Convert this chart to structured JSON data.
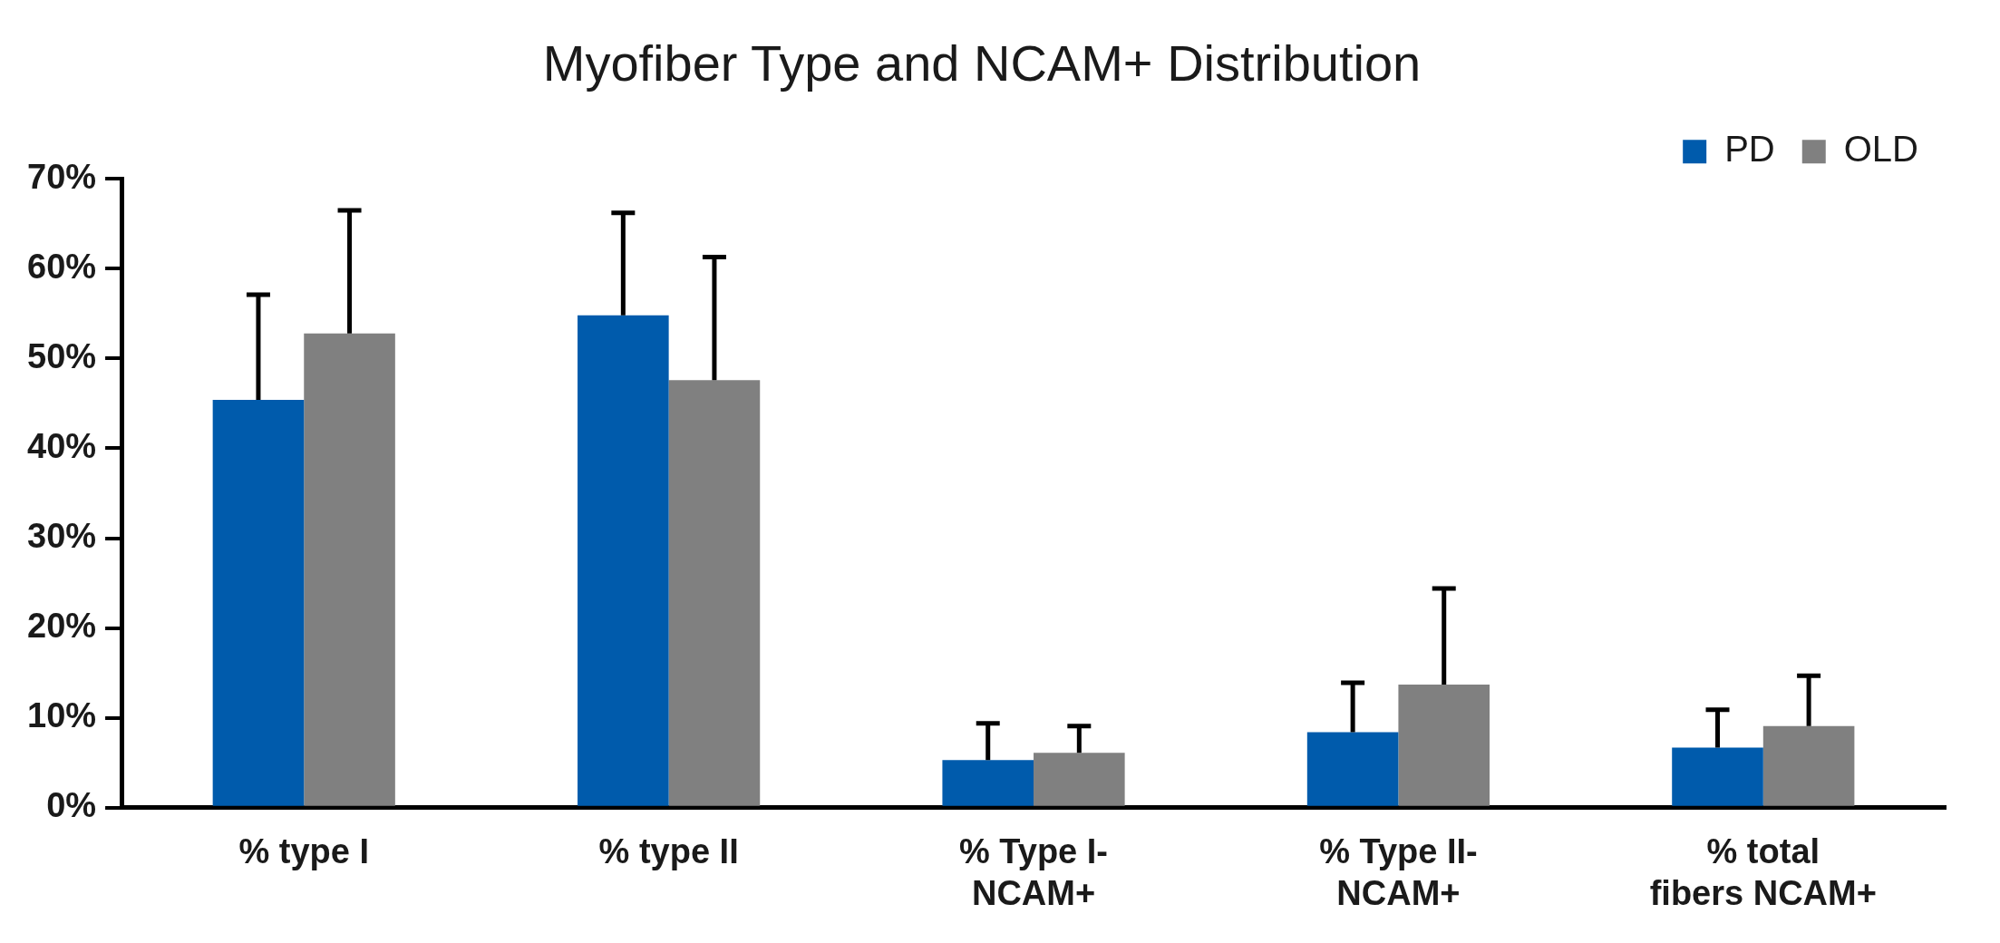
{
  "chart_data": {
    "type": "bar",
    "title": "Myofiber Type and NCAM+ Distribution",
    "categories": [
      "% type I",
      "% type II",
      "% Type I-NCAM+",
      "% Type II-NCAM+",
      "% total fibers NCAM+"
    ],
    "series": [
      {
        "name": "PD",
        "color": "#005bac",
        "values": [
          45.4,
          54.8,
          5.3,
          8.4,
          6.7
        ],
        "errors": [
          [
            45.4,
            57.1
          ],
          [
            54.8,
            66.2
          ],
          [
            5.3,
            9.4
          ],
          [
            8.4,
            13.9
          ],
          [
            6.7,
            10.9
          ]
        ]
      },
      {
        "name": "OLD",
        "color": "#808080",
        "values": [
          52.8,
          47.6,
          6.1,
          13.7,
          9.1
        ],
        "errors": [
          [
            52.8,
            66.5
          ],
          [
            47.6,
            61.3
          ],
          [
            6.1,
            9.1
          ],
          [
            13.7,
            24.4
          ],
          [
            9.1,
            14.7
          ]
        ]
      }
    ],
    "ylim": [
      0,
      70
    ],
    "yticks": [
      {
        "value": 0,
        "label": "0%"
      },
      {
        "value": 10,
        "label": "10%"
      },
      {
        "value": 20,
        "label": "20%"
      },
      {
        "value": 30,
        "label": "30%"
      },
      {
        "value": 40,
        "label": "40%"
      },
      {
        "value": 50,
        "label": "50%"
      },
      {
        "value": 60,
        "label": "60%"
      },
      {
        "value": 70,
        "label": "70%"
      }
    ],
    "legend": "top right",
    "grid": false
  }
}
